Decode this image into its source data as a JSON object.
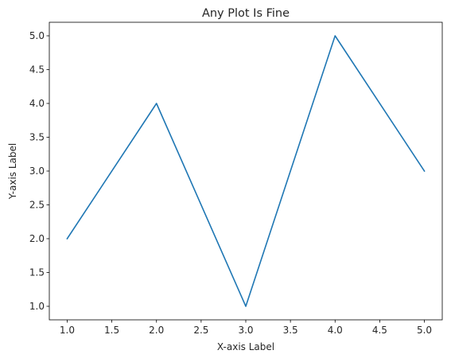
{
  "chart_data": {
    "type": "line",
    "title": "Any Plot Is Fine",
    "xlabel": "X-axis Label",
    "ylabel": "Y-axis Label",
    "x": [
      1.0,
      2.0,
      3.0,
      4.0,
      5.0
    ],
    "series": [
      {
        "values": [
          2.0,
          4.0,
          1.0,
          5.0,
          3.0
        ],
        "color": "#1f77b4"
      }
    ],
    "xlim": [
      0.8,
      5.2
    ],
    "ylim": [
      0.8,
      5.2
    ],
    "xticks": [
      1.0,
      1.5,
      2.0,
      2.5,
      3.0,
      3.5,
      4.0,
      4.5,
      5.0
    ],
    "yticks": [
      1.0,
      1.5,
      2.0,
      2.5,
      3.0,
      3.5,
      4.0,
      4.5,
      5.0
    ],
    "xtick_labels": [
      "1.0",
      "1.5",
      "2.0",
      "2.5",
      "3.0",
      "3.5",
      "4.0",
      "4.5",
      "5.0"
    ],
    "ytick_labels": [
      "1.0",
      "1.5",
      "2.0",
      "2.5",
      "3.0",
      "3.5",
      "4.0",
      "4.5",
      "5.0"
    ],
    "grid": false,
    "legend": "none"
  }
}
